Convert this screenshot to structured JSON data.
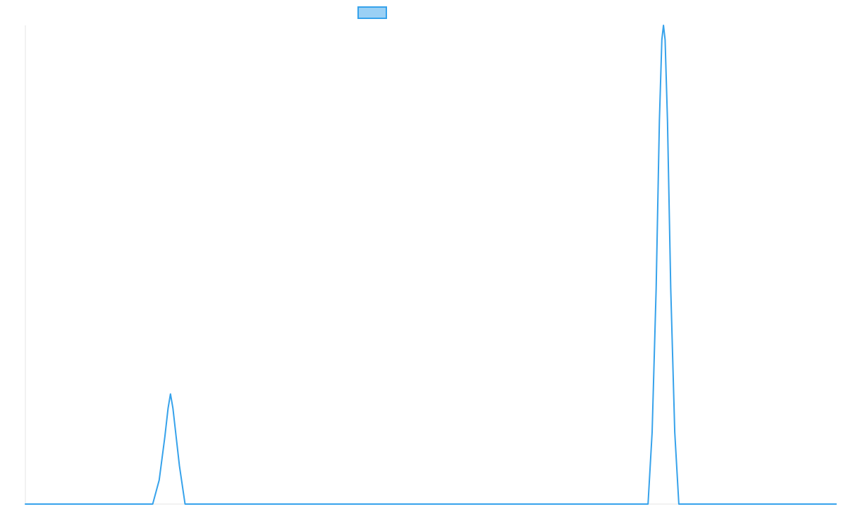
{
  "chart_data": {
    "type": "line",
    "title": "",
    "xlabel": "",
    "ylabel": "",
    "legend": {
      "placement": "top-center",
      "entries": [
        {
          "label": "",
          "color": "#36a2eb",
          "fill": "#9ad0f5"
        }
      ]
    },
    "grid": false,
    "xlim": [
      0,
      100
    ],
    "ylim": [
      0,
      100
    ],
    "series": [
      {
        "color": "#36a2eb",
        "points": [
          {
            "x": 0,
            "y": 0
          },
          {
            "x": 15.7,
            "y": 0
          },
          {
            "x": 16.5,
            "y": 5
          },
          {
            "x": 17.2,
            "y": 14
          },
          {
            "x": 17.6,
            "y": 20
          },
          {
            "x": 17.9,
            "y": 23
          },
          {
            "x": 18.2,
            "y": 20
          },
          {
            "x": 18.6,
            "y": 14
          },
          {
            "x": 19.0,
            "y": 8
          },
          {
            "x": 19.7,
            "y": 0
          },
          {
            "x": 76.8,
            "y": 0
          },
          {
            "x": 77.3,
            "y": 15
          },
          {
            "x": 77.8,
            "y": 45
          },
          {
            "x": 78.2,
            "y": 80
          },
          {
            "x": 78.5,
            "y": 97
          },
          {
            "x": 78.7,
            "y": 100
          },
          {
            "x": 78.9,
            "y": 97
          },
          {
            "x": 79.2,
            "y": 80
          },
          {
            "x": 79.6,
            "y": 45
          },
          {
            "x": 80.1,
            "y": 15
          },
          {
            "x": 80.6,
            "y": 0
          },
          {
            "x": 100,
            "y": 0
          }
        ]
      }
    ]
  }
}
